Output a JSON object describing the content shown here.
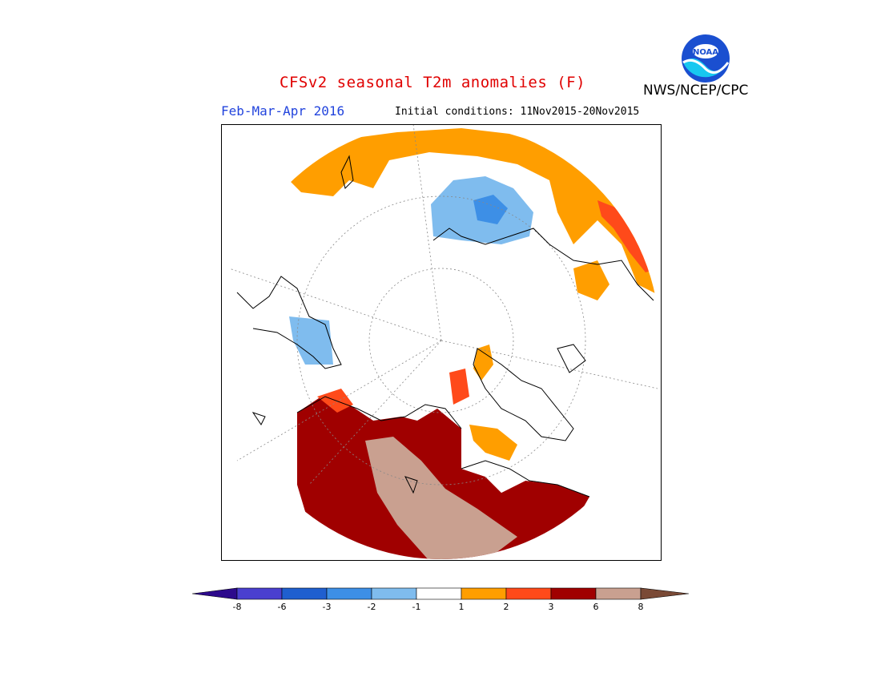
{
  "header": {
    "title": "CFSv2 seasonal T2m anomalies (F)",
    "season": "Feb-Mar-Apr 2016",
    "initial_conditions": "Initial conditions: 11Nov2015-20Nov2015",
    "org": "NWS/NCEP/CPC",
    "logo_text": "NOAA"
  },
  "colorbar": {
    "ticks": [
      "-8",
      "-6",
      "-3",
      "-2",
      "-1",
      "1",
      "2",
      "3",
      "6",
      "8"
    ],
    "colors": [
      "#2d0a8c",
      "#4a3fcf",
      "#1f5fcf",
      "#3d8fe6",
      "#7fbcee",
      "#ffffff",
      "#ff9e00",
      "#ff4a1a",
      "#a00000",
      "#c9a090",
      "#7a4a36"
    ]
  },
  "map": {
    "projection": "north-polar-stereographic",
    "regions": [
      {
        "name": "northern-eurasia",
        "anomaly_class": "+1 to +2"
      },
      {
        "name": "arctic-ocean-east",
        "anomaly_class": "-2 to -1"
      },
      {
        "name": "northwest-canada-alaska",
        "anomaly_class": "+3 to +8"
      },
      {
        "name": "hudson-bay-region",
        "anomaly_class": "+3 to +6"
      },
      {
        "name": "northeast-asia",
        "anomaly_class": "+1 to +3"
      }
    ]
  }
}
